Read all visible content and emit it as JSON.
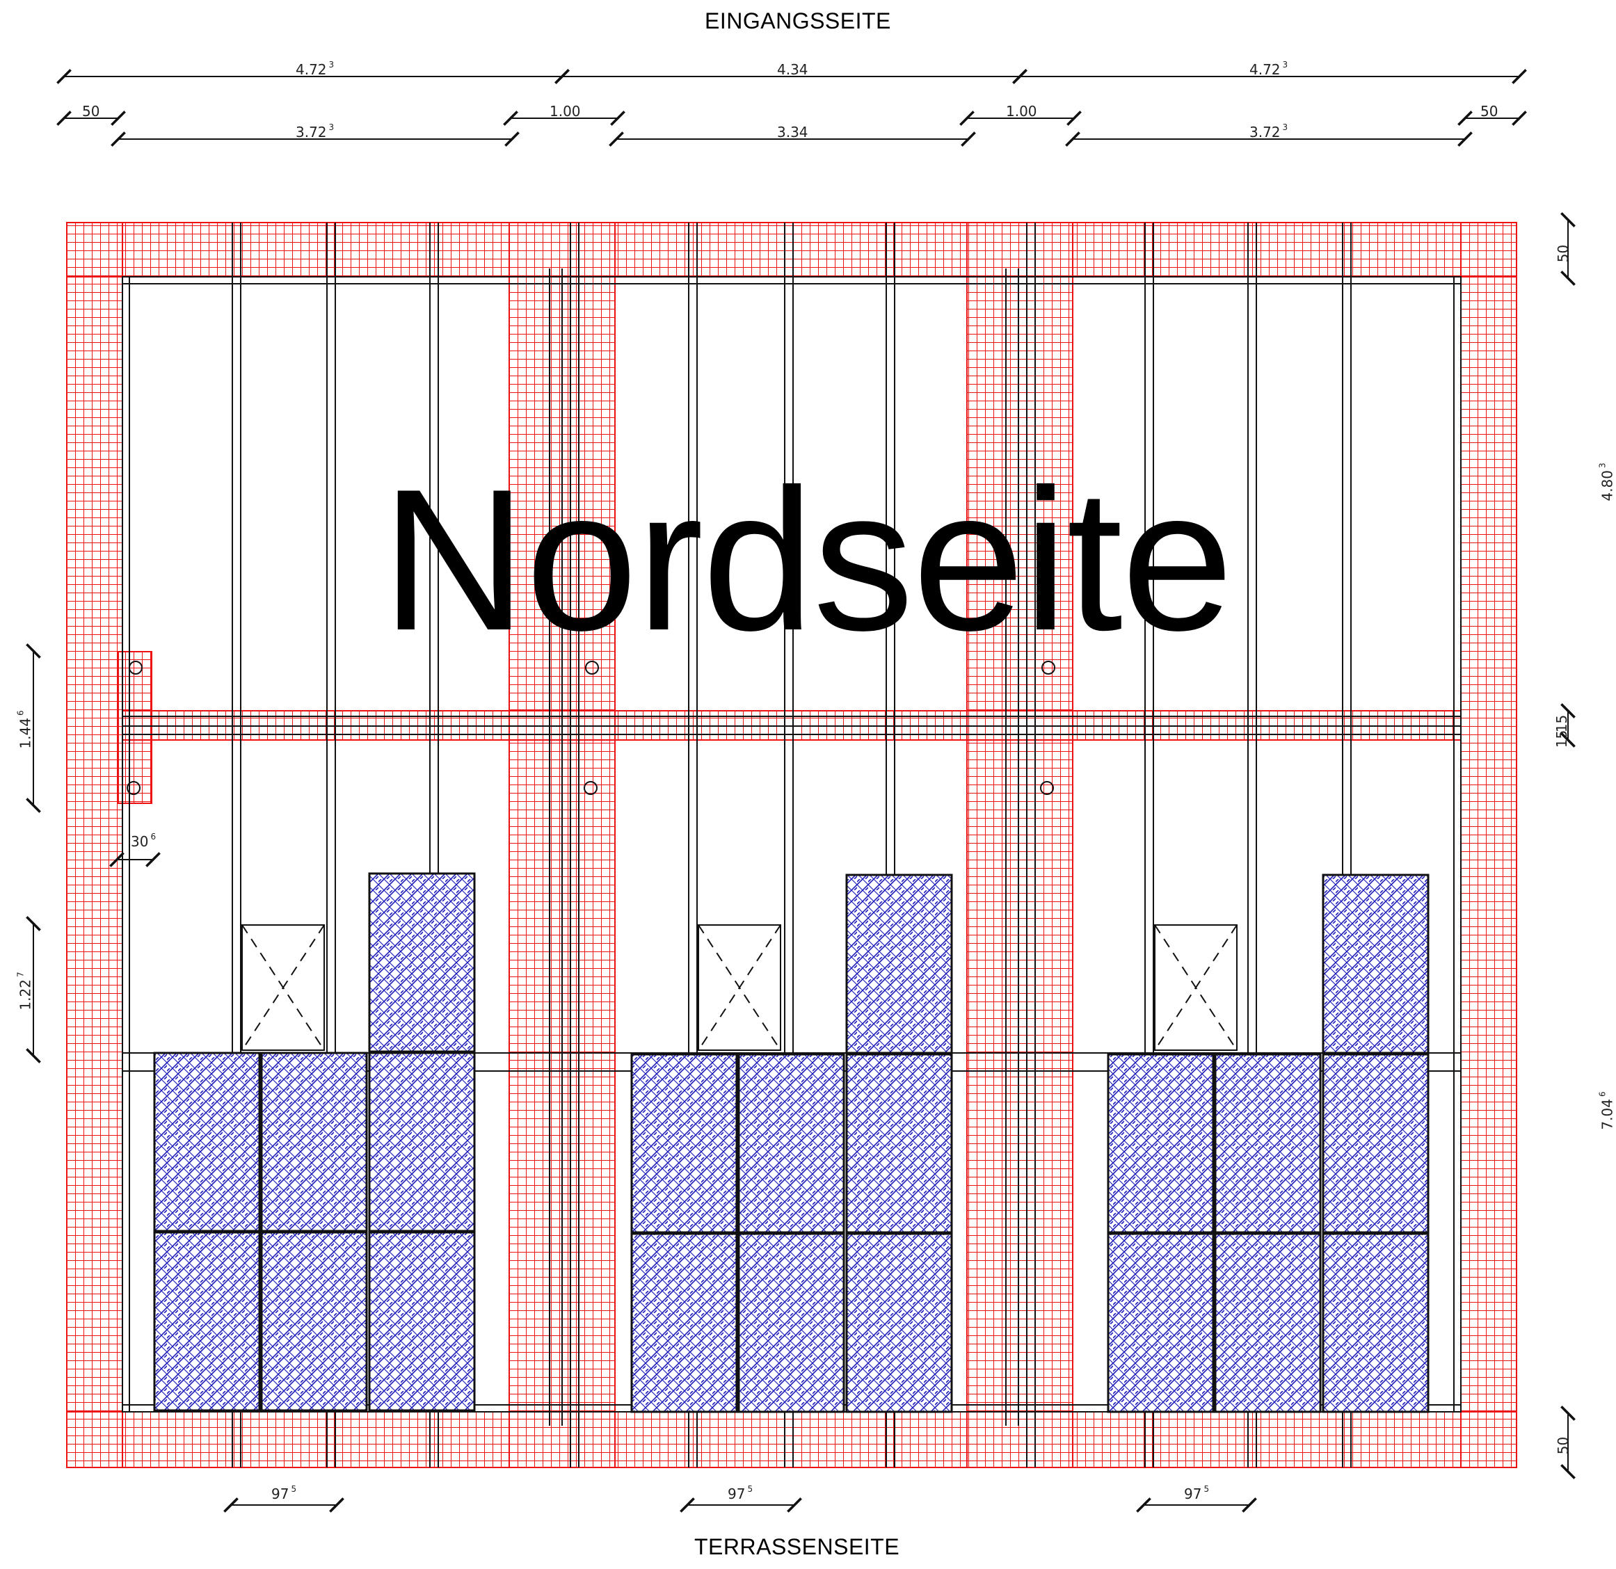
{
  "labels": {
    "top": "EINGANGSSEITE",
    "bottom": "TERRASSENSEITE",
    "title": "Nordseite"
  },
  "dimensions": {
    "top_row1": [
      {
        "text": "4.72",
        "sup": "3"
      },
      {
        "text": "4.34",
        "sup": ""
      },
      {
        "text": "4.72",
        "sup": "3"
      }
    ],
    "top_row2": [
      {
        "text": "50",
        "sup": ""
      },
      {
        "text": "1.00",
        "sup": ""
      },
      {
        "text": "1.00",
        "sup": ""
      },
      {
        "text": "50",
        "sup": ""
      }
    ],
    "top_row3": [
      {
        "text": "3.72",
        "sup": "3"
      },
      {
        "text": "3.34",
        "sup": ""
      },
      {
        "text": "3.72",
        "sup": "3"
      }
    ],
    "bottom_row": [
      {
        "text": "97",
        "sup": "5"
      },
      {
        "text": "97",
        "sup": "5"
      },
      {
        "text": "97",
        "sup": "5"
      }
    ],
    "left": [
      {
        "text": "1.44",
        "sup": "6"
      },
      {
        "text": "30",
        "sup": "6"
      },
      {
        "text": "1.22",
        "sup": "7"
      }
    ],
    "right": [
      {
        "text": "50",
        "sup": ""
      },
      {
        "text": "4.80",
        "sup": "3"
      },
      {
        "text": "15",
        "sup": ""
      },
      {
        "text": "15",
        "sup": ""
      },
      {
        "text": "7.04",
        "sup": "6"
      },
      {
        "text": "50",
        "sup": ""
      }
    ]
  },
  "colors": {
    "grid": "#ee1111",
    "panel": "#2222bb",
    "line": "#111111"
  }
}
